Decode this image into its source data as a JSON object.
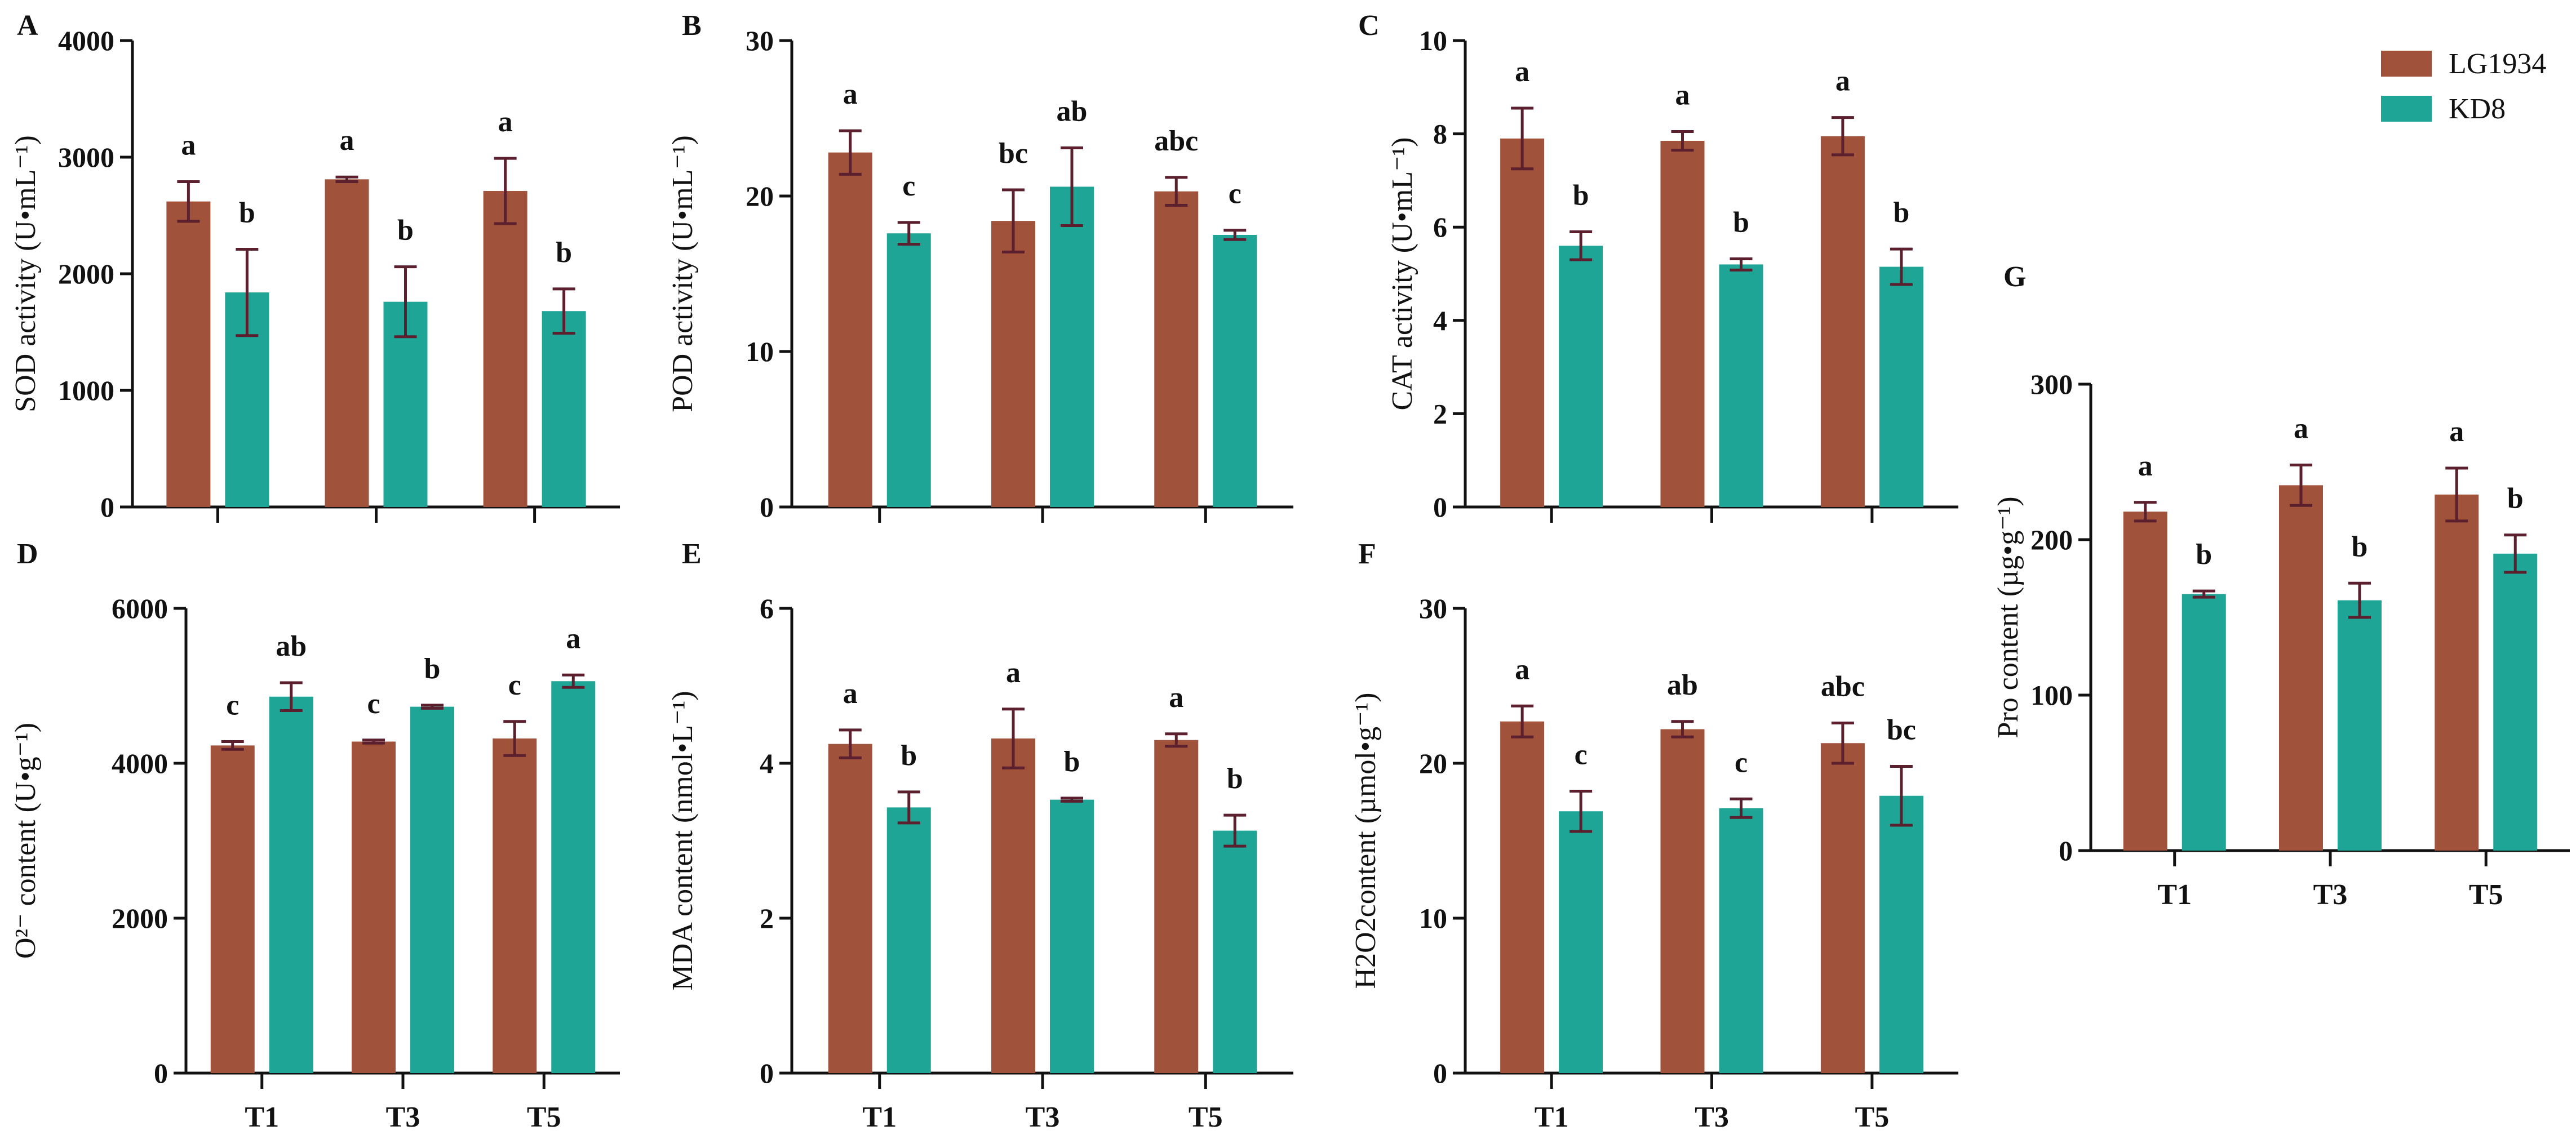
{
  "legend": [
    {
      "name": "LG1934",
      "color": "#A0523A"
    },
    {
      "name": "KD8",
      "color": "#1FA596"
    }
  ],
  "colors": {
    "LG1934": "#A0523A",
    "KD8": "#1FA596",
    "error_bar": "#5B1F2E",
    "axis": "#111111"
  },
  "chart_data": [
    {
      "id": "A",
      "panel_label": "A",
      "type": "bar",
      "ylabel": "SOD activity (U•mL⁻¹)",
      "categories": [
        "T1",
        "T3",
        "T5"
      ],
      "show_category_labels": false,
      "ylim": [
        0,
        4000
      ],
      "yticks": [
        "0",
        "1000",
        "2000",
        "3000",
        "4000"
      ],
      "series": [
        {
          "name": "LG1934",
          "values": [
            2620,
            2810,
            2710
          ],
          "errors": [
            170,
            20,
            280
          ],
          "letters": [
            "a",
            "a",
            "a"
          ]
        },
        {
          "name": "KD8",
          "values": [
            1840,
            1760,
            1680
          ],
          "errors": [
            370,
            300,
            190
          ],
          "letters": [
            "b",
            "b",
            "b"
          ]
        }
      ]
    },
    {
      "id": "B",
      "panel_label": "B",
      "type": "bar",
      "ylabel": "POD activity (U•mL⁻¹)",
      "categories": [
        "T1",
        "T3",
        "T5"
      ],
      "show_category_labels": false,
      "ylim": [
        0,
        30
      ],
      "yticks": [
        "0",
        "10",
        "20",
        "30"
      ],
      "series": [
        {
          "name": "LG1934",
          "values": [
            22.8,
            18.4,
            20.3
          ],
          "errors": [
            1.4,
            2.0,
            0.9
          ],
          "letters": [
            "a",
            "bc",
            "abc"
          ]
        },
        {
          "name": "KD8",
          "values": [
            17.6,
            20.6,
            17.5
          ],
          "errors": [
            0.7,
            2.5,
            0.3
          ],
          "letters": [
            "c",
            "ab",
            "c"
          ]
        }
      ]
    },
    {
      "id": "C",
      "panel_label": "C",
      "type": "bar",
      "ylabel": "CAT activity (U•mL⁻¹)",
      "categories": [
        "T1",
        "T3",
        "T5"
      ],
      "show_category_labels": false,
      "ylim": [
        0,
        10
      ],
      "yticks": [
        "0",
        "2",
        "4",
        "6",
        "8",
        "10"
      ],
      "series": [
        {
          "name": "LG1934",
          "values": [
            7.9,
            7.85,
            7.95
          ],
          "errors": [
            0.65,
            0.2,
            0.4
          ],
          "letters": [
            "a",
            "a",
            "a"
          ]
        },
        {
          "name": "KD8",
          "values": [
            5.6,
            5.2,
            5.15
          ],
          "errors": [
            0.3,
            0.12,
            0.38
          ],
          "letters": [
            "b",
            "b",
            "b"
          ]
        }
      ]
    },
    {
      "id": "D",
      "panel_label": "D",
      "type": "bar",
      "ylabel": "O²⁻ content (U•g⁻¹)",
      "categories": [
        "T1",
        "T3",
        "T5"
      ],
      "show_category_labels": true,
      "ylim": [
        0,
        6000
      ],
      "yticks": [
        "0",
        "2000",
        "4000",
        "6000"
      ],
      "series": [
        {
          "name": "LG1934",
          "values": [
            4230,
            4280,
            4320
          ],
          "errors": [
            50,
            20,
            220
          ],
          "letters": [
            "c",
            "c",
            "c"
          ]
        },
        {
          "name": "KD8",
          "values": [
            4860,
            4730,
            5060
          ],
          "errors": [
            180,
            20,
            80
          ],
          "letters": [
            "ab",
            "b",
            "a"
          ]
        }
      ]
    },
    {
      "id": "E",
      "panel_label": "E",
      "type": "bar",
      "ylabel": "MDA content (nmol•L⁻¹)",
      "categories": [
        "T1",
        "T3",
        "T5"
      ],
      "show_category_labels": true,
      "ylim": [
        0,
        6
      ],
      "yticks": [
        "0",
        "2",
        "4",
        "6"
      ],
      "series": [
        {
          "name": "LG1934",
          "values": [
            4.25,
            4.32,
            4.3
          ],
          "errors": [
            0.18,
            0.38,
            0.08
          ],
          "letters": [
            "a",
            "a",
            "a"
          ]
        },
        {
          "name": "KD8",
          "values": [
            3.43,
            3.53,
            3.13
          ],
          "errors": [
            0.2,
            0.02,
            0.2
          ],
          "letters": [
            "b",
            "b",
            "b"
          ]
        }
      ]
    },
    {
      "id": "F",
      "panel_label": "F",
      "type": "bar",
      "ylabel": "H2O2content (µmol•g⁻¹)",
      "categories": [
        "T1",
        "T3",
        "T5"
      ],
      "show_category_labels": true,
      "ylim": [
        0,
        30
      ],
      "yticks": [
        "0",
        "10",
        "20",
        "30"
      ],
      "series": [
        {
          "name": "LG1934",
          "values": [
            22.7,
            22.2,
            21.3
          ],
          "errors": [
            1.0,
            0.5,
            1.3
          ],
          "letters": [
            "a",
            "ab",
            "abc"
          ]
        },
        {
          "name": "KD8",
          "values": [
            16.9,
            17.1,
            17.9
          ],
          "errors": [
            1.3,
            0.6,
            1.9
          ],
          "letters": [
            "c",
            "c",
            "bc"
          ]
        }
      ]
    },
    {
      "id": "G",
      "panel_label": "G",
      "type": "bar",
      "ylabel": "Pro content (µg•g⁻¹)",
      "categories": [
        "T1",
        "T3",
        "T5"
      ],
      "show_category_labels": true,
      "ylim": [
        0,
        300
      ],
      "yticks": [
        "0",
        "100",
        "200",
        "300"
      ],
      "series": [
        {
          "name": "LG1934",
          "values": [
            218,
            235,
            229
          ],
          "errors": [
            6,
            13,
            17
          ],
          "letters": [
            "a",
            "a",
            "a"
          ]
        },
        {
          "name": "KD8",
          "values": [
            165,
            161,
            191
          ],
          "errors": [
            2,
            11,
            12
          ],
          "letters": [
            "b",
            "b",
            "b"
          ]
        }
      ]
    }
  ]
}
